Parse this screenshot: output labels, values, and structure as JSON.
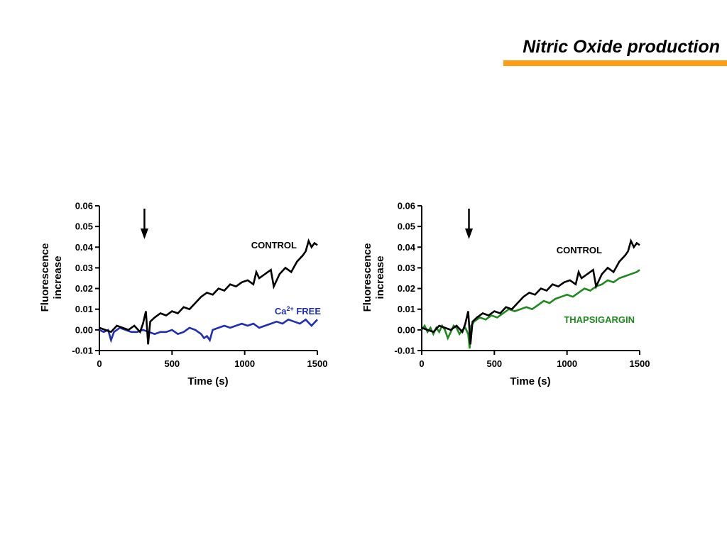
{
  "slide": {
    "title": "Nitric Oxide production",
    "accent_color": "#FF9E12"
  },
  "chart_data": [
    {
      "type": "line",
      "xlabel": "Time (s)",
      "ylabel_line1": "Fluorescence",
      "ylabel_line2": "increase",
      "xlim": [
        0,
        1500
      ],
      "ylim": [
        -0.01,
        0.06
      ],
      "x_ticks": [
        "0",
        "500",
        "1000",
        "1500"
      ],
      "y_ticks": [
        "-0.01",
        "0.00",
        "0.01",
        "0.02",
        "0.03",
        "0.04",
        "0.05",
        "0.06"
      ],
      "arrow_at_x": 310,
      "series": [
        {
          "name": "CONTROL",
          "color": "#000000",
          "x": [
            0,
            40,
            80,
            120,
            160,
            200,
            240,
            280,
            300,
            320,
            335,
            350,
            380,
            420,
            460,
            500,
            540,
            580,
            620,
            660,
            700,
            740,
            780,
            820,
            860,
            900,
            940,
            980,
            1020,
            1060,
            1080,
            1100,
            1140,
            1180,
            1200,
            1240,
            1280,
            1320,
            1360,
            1400,
            1420,
            1440,
            1460,
            1480,
            1500
          ],
          "values": [
            0.001,
            0.0,
            -0.001,
            0.002,
            0.001,
            0.0,
            0.002,
            -0.001,
            0.003,
            0.009,
            -0.007,
            0.004,
            0.006,
            0.008,
            0.007,
            0.009,
            0.008,
            0.011,
            0.01,
            0.013,
            0.016,
            0.018,
            0.017,
            0.02,
            0.019,
            0.022,
            0.021,
            0.023,
            0.024,
            0.022,
            0.028,
            0.025,
            0.027,
            0.029,
            0.021,
            0.027,
            0.03,
            0.028,
            0.033,
            0.036,
            0.038,
            0.043,
            0.04,
            0.042,
            0.041
          ]
        },
        {
          "name": "Ca2+ FREE",
          "label_main": "Ca",
          "label_sup": "2+",
          "label_rest": " FREE",
          "color": "#1F2FB5",
          "x": [
            0,
            30,
            60,
            80,
            100,
            140,
            180,
            220,
            260,
            300,
            340,
            380,
            420,
            460,
            500,
            540,
            580,
            620,
            660,
            700,
            720,
            740,
            760,
            780,
            820,
            860,
            900,
            940,
            980,
            1020,
            1060,
            1100,
            1140,
            1180,
            1220,
            1260,
            1300,
            1340,
            1380,
            1420,
            1460,
            1500
          ],
          "values": [
            0.0,
            -0.001,
            0.0,
            -0.005,
            -0.001,
            0.001,
            0.0,
            -0.001,
            -0.001,
            0.0,
            -0.001,
            -0.002,
            -0.001,
            -0.001,
            0.0,
            -0.002,
            -0.001,
            0.001,
            0.0,
            -0.002,
            -0.004,
            -0.003,
            -0.005,
            0.0,
            0.001,
            0.002,
            0.001,
            0.002,
            0.003,
            0.002,
            0.003,
            0.001,
            0.002,
            0.003,
            0.004,
            0.003,
            0.005,
            0.004,
            0.003,
            0.005,
            0.002,
            0.005
          ]
        }
      ]
    },
    {
      "type": "line",
      "xlabel": "Time (s)",
      "ylabel_line1": "Fluorescence",
      "ylabel_line2": "increase",
      "xlim": [
        0,
        1500
      ],
      "ylim": [
        -0.01,
        0.06
      ],
      "x_ticks": [
        "0",
        "500",
        "1000",
        "1500"
      ],
      "y_ticks": [
        "-0.01",
        "0.00",
        "0.01",
        "0.02",
        "0.03",
        "0.04",
        "0.05",
        "0.06"
      ],
      "arrow_at_x": 325,
      "series": [
        {
          "name": "CONTROL",
          "color": "#000000",
          "x": [
            0,
            40,
            80,
            120,
            160,
            200,
            240,
            280,
            300,
            320,
            335,
            350,
            380,
            420,
            460,
            500,
            540,
            580,
            620,
            660,
            700,
            740,
            780,
            820,
            860,
            900,
            940,
            980,
            1020,
            1060,
            1080,
            1100,
            1140,
            1180,
            1200,
            1240,
            1280,
            1320,
            1360,
            1400,
            1420,
            1440,
            1460,
            1480,
            1500
          ],
          "values": [
            0.001,
            0.0,
            -0.001,
            0.002,
            0.001,
            0.0,
            0.002,
            -0.001,
            0.003,
            0.009,
            -0.007,
            0.004,
            0.006,
            0.008,
            0.007,
            0.009,
            0.008,
            0.011,
            0.01,
            0.013,
            0.016,
            0.018,
            0.017,
            0.02,
            0.019,
            0.022,
            0.021,
            0.023,
            0.024,
            0.022,
            0.028,
            0.025,
            0.027,
            0.029,
            0.021,
            0.027,
            0.03,
            0.028,
            0.033,
            0.036,
            0.038,
            0.043,
            0.04,
            0.042,
            0.041
          ]
        },
        {
          "name": "THAPSIGARGIN",
          "color": "#1E8A1E",
          "x": [
            0,
            20,
            40,
            60,
            80,
            100,
            120,
            140,
            160,
            180,
            200,
            220,
            240,
            260,
            280,
            300,
            320,
            330,
            340,
            360,
            400,
            440,
            480,
            520,
            560,
            600,
            640,
            680,
            720,
            760,
            800,
            840,
            880,
            920,
            960,
            1000,
            1040,
            1080,
            1120,
            1160,
            1200,
            1240,
            1280,
            1320,
            1360,
            1400,
            1440,
            1480,
            1500
          ],
          "values": [
            0.0,
            0.002,
            -0.001,
            0.001,
            -0.002,
            0.001,
            -0.001,
            0.002,
            0.0,
            -0.004,
            -0.001,
            0.002,
            0.001,
            -0.002,
            0.0,
            0.001,
            -0.002,
            -0.009,
            0.002,
            0.004,
            0.006,
            0.005,
            0.007,
            0.006,
            0.008,
            0.01,
            0.009,
            0.01,
            0.011,
            0.01,
            0.012,
            0.014,
            0.013,
            0.015,
            0.016,
            0.017,
            0.016,
            0.018,
            0.02,
            0.019,
            0.021,
            0.022,
            0.024,
            0.023,
            0.025,
            0.026,
            0.027,
            0.028,
            0.029
          ]
        }
      ]
    }
  ]
}
